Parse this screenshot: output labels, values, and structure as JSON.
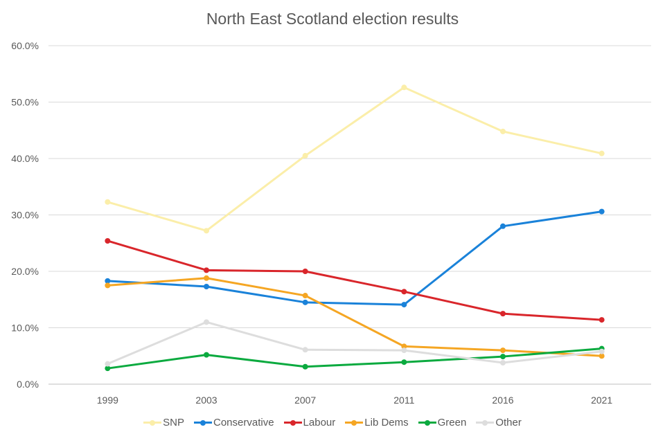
{
  "chart_data": {
    "type": "line",
    "title": "North East Scotland election results",
    "categories": [
      "1999",
      "2003",
      "2007",
      "2011",
      "2016",
      "2021"
    ],
    "ylim": [
      0,
      60
    ],
    "yticks": [
      "0.0%",
      "10.0%",
      "20.0%",
      "30.0%",
      "40.0%",
      "50.0%",
      "60.0%"
    ],
    "grid": true,
    "legend_position": "bottom",
    "series": [
      {
        "name": "SNP",
        "color": "#FBEEA9",
        "values": [
          32.3,
          27.2,
          40.5,
          52.6,
          44.8,
          40.9
        ]
      },
      {
        "name": "Conservative",
        "color": "#1A82D9",
        "values": [
          18.3,
          17.3,
          14.5,
          14.1,
          28.0,
          30.6
        ]
      },
      {
        "name": "Labour",
        "color": "#D9262B",
        "values": [
          25.4,
          20.2,
          20.0,
          16.4,
          12.5,
          11.4
        ]
      },
      {
        "name": "Lib Dems",
        "color": "#F5A623",
        "values": [
          17.5,
          18.8,
          15.7,
          6.7,
          6.0,
          5.0
        ]
      },
      {
        "name": "Green",
        "color": "#0BAA3F",
        "values": [
          2.8,
          5.2,
          3.1,
          3.9,
          4.9,
          6.3
        ]
      },
      {
        "name": "Other",
        "color": "#DDDDDD",
        "values": [
          3.6,
          11.0,
          6.1,
          6.0,
          3.8,
          5.8
        ]
      }
    ]
  }
}
